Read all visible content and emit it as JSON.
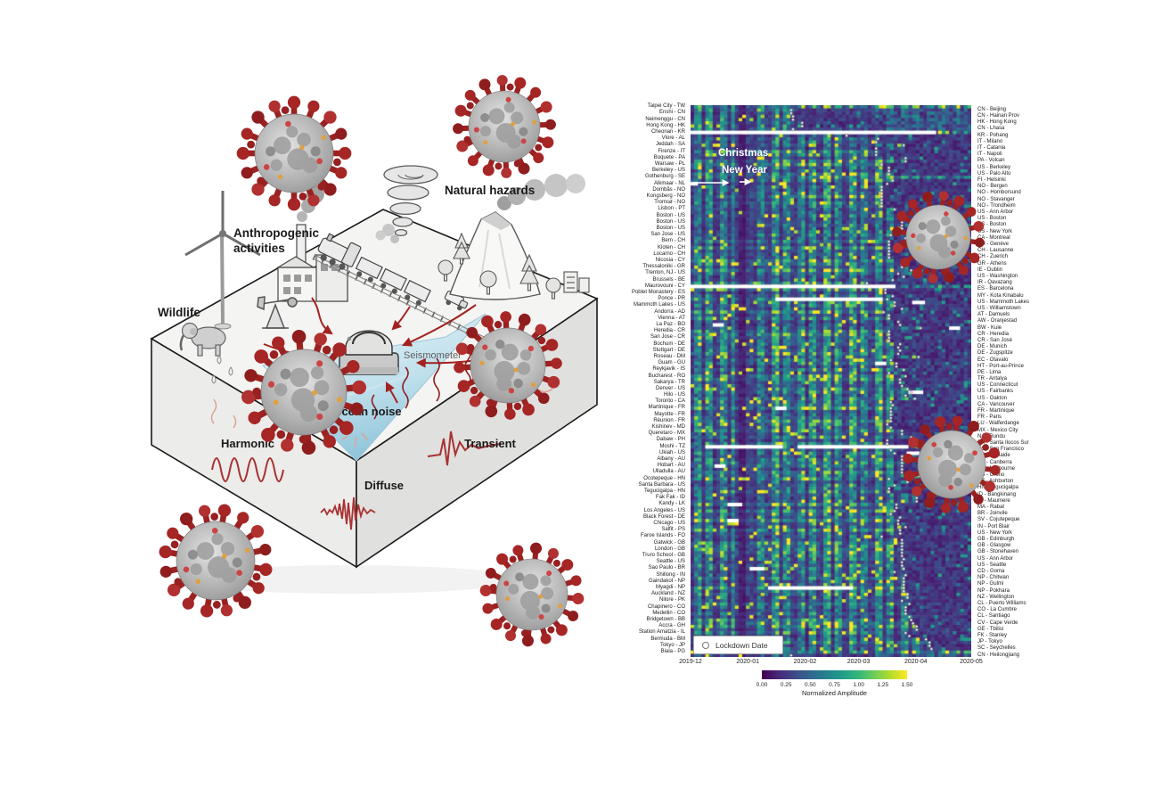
{
  "diagram": {
    "labels": {
      "anthropogenic_line1": "Anthropogenic",
      "anthropogenic_line2": "activities",
      "natural_hazards": "Natural hazards",
      "wildlife": "Wildlife",
      "seismometer": "Seismometer",
      "ocean_noise": "Ocean noise",
      "harmonic": "Harmonic",
      "transient": "Transient",
      "diffuse": "Diffuse"
    }
  },
  "chart_data": {
    "type": "heatmap",
    "title": "",
    "xlabel": "",
    "ylabel": "",
    "x_ticks": [
      "2019-12",
      "2020-01",
      "2020-02",
      "2020-03",
      "2020-04",
      "2020-05"
    ],
    "x_tick_day_offsets": [
      0,
      31,
      62,
      91,
      122,
      152
    ],
    "x_range": [
      "2019-12-01",
      "2020-05-01"
    ],
    "n_days": 152,
    "n_rows": 172,
    "row_order_note": "rows alternate label side: even rows labeled left, odd rows labeled right",
    "annotations": {
      "christmas": "Christmas",
      "new_year": "New Year",
      "christmas_day": 24,
      "new_year_day": 31
    },
    "legend_label": "Lockdown Date",
    "colorbar": {
      "label": "Normalized Amplitude",
      "ticks": [
        "0.00",
        "0.25",
        "0.50",
        "0.75",
        "1.00",
        "1.25",
        "1.50"
      ],
      "vmin": 0.0,
      "vmax": 1.5,
      "cmap": "viridis"
    },
    "visual_pattern": {
      "pre_lockdown_amplitude": [
        0.5,
        1.05
      ],
      "weekend_dip_factor": 0.4,
      "holiday_dip_factor": 0.42,
      "holiday_days": [
        23,
        32
      ],
      "post_lockdown_amplitude": [
        0.1,
        0.4
      ],
      "spike_amplitude": [
        1.25,
        1.5
      ]
    },
    "left_labels": [
      "Taipei City - TW",
      "Enshi - CN",
      "Neimenggu - CN",
      "Hong Kong - HK",
      "Cheonan - KR",
      "Vlore - AL",
      "Jeddah - SA",
      "Firenze - IT",
      "Boquete - PA",
      "Warsaw - PL",
      "Berkeley - US",
      "Gothenburg - SE",
      "Alkmaar - NL",
      "Dombås - NO",
      "Kongsberg - NO",
      "Tromsø - NO",
      "Lisbon - PT",
      "Boston - US",
      "Boston - US",
      "Boston - US",
      "San Jose - US",
      "Bern - CH",
      "Kloten - CH",
      "Locarno - CH",
      "Nicosia - CY",
      "Thessaloniki - GR",
      "Trenton, NJ - US",
      "Brussels - BE",
      "Maurovouni - CY",
      "Poblet Monastery - ES",
      "Ponce - PR",
      "Mammoth Lakes - US",
      "Andorra - AD",
      "Vienna - AT",
      "La Paz - BO",
      "Heredia - CR",
      "San Jose - CR",
      "Bochum - DE",
      "Stuttgart - DE",
      "Roseau - DM",
      "Guam - GU",
      "Reykjavik - IS",
      "Bucharest - RO",
      "Sakarya - TR",
      "Denver - US",
      "Hilo - US",
      "Toronto - CA",
      "Martinique - FR",
      "Mayotte - FR",
      "Réunion - FR",
      "Kishinev - MD",
      "Queretaro - MX",
      "Dabaw - PH",
      "Moshi - TZ",
      "Ukiah - US",
      "Albany - AU",
      "Hobart - AU",
      "Ulladulla - AU",
      "Ocotepeque - HN",
      "Santa Barbara - US",
      "Tegucigalpa - HN",
      "Fak Fak - ID",
      "Kandy - LK",
      "Los Angeles - US",
      "Black Forest - DE",
      "Chicago - US",
      "Salfit - PS",
      "Faroe Islands - FO",
      "Gatwick - GB",
      "London - GB",
      "Truro School - GB",
      "Seattle - US",
      "Sao Paulo - BR",
      "Shillong - IN",
      "Gaindakot - NP",
      "Myagdi - NP",
      "Auckland - NZ",
      "Nilore - PK",
      "Chapinero - CO",
      "Medellin - CO",
      "Bridgetown - BB",
      "Accra - GH",
      "Station Amatzia - IL",
      "Bermuda - BM",
      "Tokyo - JP",
      "Biala - PG"
    ],
    "right_labels": [
      "CN - Beijing",
      "CN - Hainan Prov",
      "HK - Hong Kong",
      "CN - Lhasa",
      "KR - Pohang",
      "IT - Milano",
      "IT - Catania",
      "IT - Napoli",
      "PA - Volcan",
      "US - Berkeley",
      "US - Palo Alto",
      "FI - Helsinki",
      "NO - Bergen",
      "NO - Homborsund",
      "NO - Stavanger",
      "NO - Trondheim",
      "US - Ann Arbor",
      "US - Boston",
      "US - Boston",
      "US - New York",
      "CA - Montreal",
      "CH - Genève",
      "CH - Lausanne",
      "CH - Zuerich",
      "GR - Athens",
      "IE - Dublin",
      "US - Washington",
      "IR - Qavazang",
      "ES - Barcelona",
      "MY - Kota Kinabalu",
      "US - Mammoth Lakes",
      "US - Williamstown",
      "AT - Damuels",
      "AW - Oranjestad",
      "BW - Kule",
      "CR - Heredia",
      "CR - San José",
      "DE - Munich",
      "DE - Zugspitze",
      "EC - Otavalo",
      "HT - Port-au-Prince",
      "PE - Lima",
      "TR - Antalya",
      "US - Connecticut",
      "US - Fairbanks",
      "US - Oakton",
      "CA - Vancouver",
      "FR - Martinique",
      "FR - Paris",
      "LU - Walferdange",
      "MX - Mexico City",
      "NA - Rundu",
      "PH - Santa Ilocos Sur",
      "US - San Francisco",
      "AU - Adelaide",
      "AU - Canberra",
      "AU - Melbourne",
      "US - Orono",
      "NZ - Ashburton",
      "HN - Tegucigalpa",
      "ID - Bangkinang",
      "ID - Maumere",
      "MA - Rabat",
      "BR - Joinvile",
      "SV - Cojutepeque",
      "IN - Port Blair",
      "US - New York",
      "GB - Edinburgh",
      "GB - Glasgow",
      "GB - Stonehaven",
      "US - Ann Arbor",
      "US - Seattle",
      "CD - Goma",
      "NP - Chitwan",
      "NP - Gulmi",
      "NP - Pokhara",
      "NZ - Wellington",
      "CL - Puerto Williams",
      "CO - La Cumbre",
      "CL - Santiago",
      "CV - Cape Verde",
      "GE - Tbilisi",
      "FK - Stanley",
      "JP - Tokyo",
      "SC - Seychelles",
      "CN - Heilongjiang"
    ],
    "left_lockdown_days": [
      null,
      54,
      55,
      60,
      null,
      101,
      115,
      100,
      116,
      103,
      107,
      null,
      106,
      103,
      103,
      103,
      110,
      114,
      114,
      114,
      108,
      107,
      107,
      107,
      115,
      114,
      112,
      109,
      null,
      105,
      106,
      110,
      104,
      107,
      113,
      107,
      107,
      113,
      113,
      123,
      111,
      115,
      116,
      113,
      117,
      116,
      108,
      108,
      108,
      108,
      108,
      114,
      106,
      null,
      110,
      114,
      114,
      114,
      107,
      110,
      107,
      122,
      111,
      110,
      113,
      112,
      113,
      103,
      114,
      114,
      114,
      114,
      115,
      116,
      115,
      115,
      117,
      114,
      116,
      116,
      119,
      122,
      116,
      127,
      129,
      null
    ],
    "right_lockdown_days": [
      54,
      55,
      60,
      55,
      84,
      100,
      100,
      100,
      116,
      107,
      107,
      109,
      103,
      103,
      103,
      103,
      115,
      114,
      114,
      113,
      116,
      107,
      107,
      107,
      114,
      119,
      115,
      95,
      105,
      109,
      110,
      114,
      107,
      112,
      124,
      107,
      107,
      112,
      112,
      108,
      111,
      107,
      113,
      114,
      119,
      121,
      109,
      108,
      108,
      106,
      114,
      119,
      106,
      108,
      114,
      114,
      114,
      123,
      117,
      107,
      122,
      122,
      111,
      108,
      112,
      116,
      113,
      114,
      114,
      114,
      115,
      114,
      110,
      115,
      115,
      115,
      117,
      118,
      116,
      118,
      120,
      122,
      118,
      129,
      130,
      54
    ],
    "data_gaps": [
      [
        8,
        0,
        133
      ],
      [
        24,
        0,
        4
      ],
      [
        56,
        0,
        111
      ],
      [
        60,
        46,
        104
      ],
      [
        61,
        120,
        127
      ],
      [
        68,
        12,
        18
      ],
      [
        69,
        140,
        146
      ],
      [
        80,
        100,
        106
      ],
      [
        89,
        118,
        126
      ],
      [
        94,
        46,
        52
      ],
      [
        106,
        8,
        50
      ],
      [
        106,
        58,
        118
      ],
      [
        108,
        117,
        124
      ],
      [
        112,
        13,
        19
      ],
      [
        124,
        20,
        28
      ],
      [
        129,
        20,
        26
      ],
      [
        144,
        32,
        40
      ],
      [
        150,
        42,
        88
      ]
    ],
    "colors": {
      "accent_red": "#a22222",
      "virus_red": "#9c2121",
      "heat_low": "#440154",
      "heat_mid": "#21918c",
      "heat_high": "#fde725"
    }
  }
}
